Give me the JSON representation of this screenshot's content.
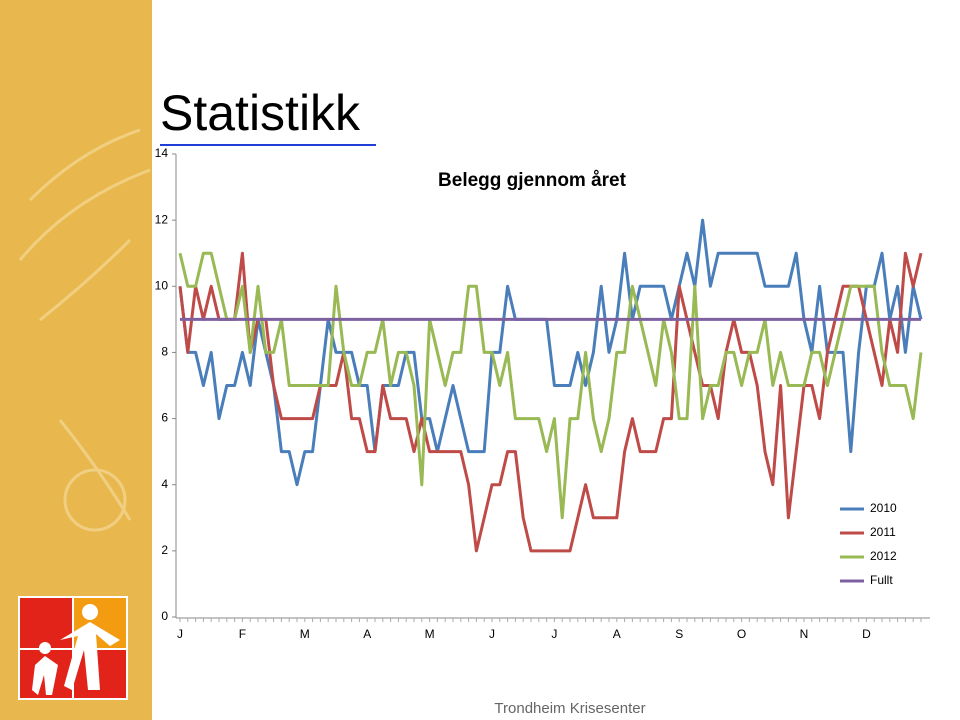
{
  "slide": {
    "title": "Statistikk",
    "footer": "Trondheim Krisesenter"
  },
  "chart_data": {
    "type": "line",
    "title": "Belegg gjennom året",
    "categories": [
      "J",
      null,
      null,
      null,
      null,
      null,
      null,
      null,
      "F",
      null,
      null,
      null,
      null,
      null,
      null,
      null,
      "M",
      null,
      null,
      null,
      null,
      null,
      null,
      null,
      "A",
      null,
      null,
      null,
      null,
      null,
      null,
      null,
      "M",
      null,
      null,
      null,
      null,
      null,
      null,
      null,
      "J",
      null,
      null,
      null,
      null,
      null,
      null,
      null,
      "J",
      null,
      null,
      null,
      null,
      null,
      null,
      null,
      "A",
      null,
      null,
      null,
      null,
      null,
      null,
      null,
      "S",
      null,
      null,
      null,
      null,
      null,
      null,
      null,
      "O",
      null,
      null,
      null,
      null,
      null,
      null,
      null,
      "N",
      null,
      null,
      null,
      null,
      null,
      null,
      null,
      "D",
      null,
      null,
      null,
      null,
      null,
      null,
      null
    ],
    "ylim": [
      0,
      14
    ],
    "yticks": [
      0,
      2,
      4,
      6,
      8,
      10,
      12,
      14
    ],
    "legend": "lower right",
    "series": [
      {
        "name": "2010",
        "color": "#4a7ebb",
        "values": [
          10,
          8,
          8,
          7,
          8,
          6,
          7,
          7,
          8,
          7,
          9,
          8,
          7,
          5,
          5,
          4,
          5,
          5,
          7,
          9,
          8,
          8,
          8,
          7,
          7,
          5,
          7,
          7,
          7,
          8,
          8,
          6,
          6,
          5,
          6,
          7,
          6,
          5,
          5,
          5,
          8,
          8,
          10,
          9,
          9,
          9,
          9,
          9,
          7,
          7,
          7,
          8,
          7,
          8,
          10,
          8,
          9,
          11,
          9,
          10,
          10,
          10,
          10,
          9,
          10,
          11,
          10,
          12,
          10,
          11,
          11,
          11,
          11,
          11,
          11,
          10,
          10,
          10,
          10,
          11,
          9,
          8,
          10,
          8,
          8,
          8,
          5,
          8,
          10,
          10,
          11,
          9,
          10,
          8,
          10,
          9
        ]
      },
      {
        "name": "2011",
        "color": "#be4b48",
        "values": [
          10,
          8,
          10,
          9,
          10,
          9,
          9,
          9,
          11,
          8,
          9,
          9,
          7,
          6,
          6,
          6,
          6,
          6,
          7,
          7,
          7,
          8,
          6,
          6,
          5,
          5,
          7,
          6,
          6,
          6,
          5,
          6,
          5,
          5,
          5,
          5,
          5,
          4,
          2,
          3,
          4,
          4,
          5,
          5,
          3,
          2,
          2,
          2,
          2,
          2,
          2,
          3,
          4,
          3,
          3,
          3,
          3,
          5,
          6,
          5,
          5,
          5,
          6,
          6,
          10,
          9,
          8,
          7,
          7,
          6,
          8,
          9,
          8,
          8,
          7,
          5,
          4,
          7,
          3,
          5,
          7,
          7,
          6,
          8,
          9,
          10,
          10,
          10,
          9,
          8,
          7,
          9,
          8,
          11,
          10,
          11
        ]
      },
      {
        "name": "2012",
        "color": "#98b954",
        "values": [
          11,
          10,
          10,
          11,
          11,
          10,
          9,
          9,
          10,
          8,
          10,
          8,
          8,
          9,
          7,
          7,
          7,
          7,
          7,
          7,
          10,
          8,
          7,
          7,
          8,
          8,
          9,
          7,
          8,
          8,
          7,
          4,
          9,
          8,
          7,
          8,
          8,
          10,
          10,
          8,
          8,
          7,
          8,
          6,
          6,
          6,
          6,
          5,
          6,
          3,
          6,
          6,
          8,
          6,
          5,
          6,
          8,
          8,
          10,
          9,
          8,
          7,
          9,
          8,
          6,
          6,
          10,
          6,
          7,
          7,
          8,
          8,
          7,
          8,
          8,
          9,
          7,
          8,
          7,
          7,
          7,
          8,
          8,
          7,
          8,
          9,
          10,
          10,
          10,
          10,
          8,
          7,
          7,
          7,
          6,
          8
        ]
      },
      {
        "name": "Fullt",
        "color": "#7d60a0",
        "values": [
          9,
          9,
          9,
          9,
          9,
          9,
          9,
          9,
          9,
          9,
          9,
          9,
          9,
          9,
          9,
          9,
          9,
          9,
          9,
          9,
          9,
          9,
          9,
          9,
          9,
          9,
          9,
          9,
          9,
          9,
          9,
          9,
          9,
          9,
          9,
          9,
          9,
          9,
          9,
          9,
          9,
          9,
          9,
          9,
          9,
          9,
          9,
          9,
          9,
          9,
          9,
          9,
          9,
          9,
          9,
          9,
          9,
          9,
          9,
          9,
          9,
          9,
          9,
          9,
          9,
          9,
          9,
          9,
          9,
          9,
          9,
          9,
          9,
          9,
          9,
          9,
          9,
          9,
          9,
          9,
          9,
          9,
          9,
          9,
          9,
          9,
          9,
          9,
          9,
          9,
          9,
          9,
          9,
          9,
          9,
          9
        ]
      }
    ]
  }
}
